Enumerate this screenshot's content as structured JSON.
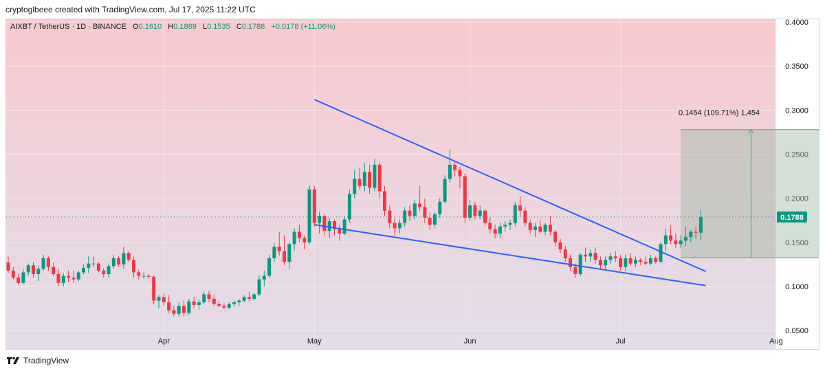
{
  "header": {
    "credit": "cryptoglbeee created with TradingView.com, Jul 17, 2025 11:22 UTC"
  },
  "legend": {
    "symbol": "AIXBT / TetherUS · 1D · BINANCE",
    "open_label": "O",
    "open": "0.1610",
    "high_label": "H",
    "high": "0.1869",
    "low_label": "L",
    "low": "0.1535",
    "close_label": "C",
    "close": "0.1788",
    "change": "+0.0178 (+11.06%)"
  },
  "brand": {
    "name": "TradingView",
    "logo_icon": "tradingview-logo-icon"
  },
  "chart_data": {
    "type": "candlestick",
    "title": "AIXBT / TetherUS · 1D · BINANCE",
    "ylim": [
      0.04,
      0.4
    ],
    "y_ticks": [
      "0.0500",
      "0.1000",
      "0.1500",
      "0.2000",
      "0.2500",
      "0.3000",
      "0.3500",
      "0.4000"
    ],
    "x_ticks": [
      {
        "label": "Apr",
        "day": 31
      },
      {
        "label": "May",
        "day": 61
      },
      {
        "label": "Jun",
        "day": 92
      },
      {
        "label": "Jul",
        "day": 122
      },
      {
        "label": "Aug",
        "day": 153
      }
    ],
    "last_price": "0.1788",
    "colors": {
      "up": "#089981",
      "down": "#f23645",
      "trend": "#2962ff",
      "measure": "#4caf50"
    },
    "candles": [
      [
        0.127,
        0.134,
        0.115,
        0.118
      ],
      [
        0.118,
        0.122,
        0.108,
        0.11
      ],
      [
        0.11,
        0.115,
        0.102,
        0.104
      ],
      [
        0.104,
        0.12,
        0.103,
        0.116
      ],
      [
        0.116,
        0.126,
        0.112,
        0.124
      ],
      [
        0.124,
        0.128,
        0.11,
        0.114
      ],
      [
        0.114,
        0.124,
        0.106,
        0.12
      ],
      [
        0.12,
        0.136,
        0.118,
        0.132
      ],
      [
        0.132,
        0.134,
        0.118,
        0.122
      ],
      [
        0.122,
        0.127,
        0.112,
        0.114
      ],
      [
        0.114,
        0.12,
        0.1,
        0.104
      ],
      [
        0.104,
        0.115,
        0.1,
        0.112
      ],
      [
        0.112,
        0.118,
        0.105,
        0.11
      ],
      [
        0.11,
        0.118,
        0.104,
        0.108
      ],
      [
        0.108,
        0.118,
        0.106,
        0.116
      ],
      [
        0.116,
        0.125,
        0.114,
        0.121
      ],
      [
        0.121,
        0.134,
        0.115,
        0.126
      ],
      [
        0.126,
        0.134,
        0.122,
        0.126
      ],
      [
        0.126,
        0.128,
        0.116,
        0.118
      ],
      [
        0.118,
        0.121,
        0.11,
        0.114
      ],
      [
        0.114,
        0.126,
        0.11,
        0.123
      ],
      [
        0.123,
        0.136,
        0.12,
        0.132
      ],
      [
        0.132,
        0.134,
        0.122,
        0.125
      ],
      [
        0.125,
        0.145,
        0.12,
        0.138
      ],
      [
        0.138,
        0.14,
        0.128,
        0.13
      ],
      [
        0.13,
        0.134,
        0.11,
        0.116
      ],
      [
        0.116,
        0.119,
        0.108,
        0.112
      ],
      [
        0.112,
        0.116,
        0.109,
        0.112
      ],
      [
        0.112,
        0.114,
        0.109,
        0.111
      ],
      [
        0.111,
        0.113,
        0.08,
        0.084
      ],
      [
        0.084,
        0.09,
        0.075,
        0.088
      ],
      [
        0.088,
        0.092,
        0.078,
        0.082
      ],
      [
        0.082,
        0.09,
        0.07,
        0.073
      ],
      [
        0.073,
        0.078,
        0.066,
        0.069
      ],
      [
        0.069,
        0.082,
        0.066,
        0.078
      ],
      [
        0.078,
        0.084,
        0.066,
        0.07
      ],
      [
        0.07,
        0.086,
        0.068,
        0.083
      ],
      [
        0.083,
        0.088,
        0.075,
        0.079
      ],
      [
        0.079,
        0.085,
        0.074,
        0.082
      ],
      [
        0.082,
        0.094,
        0.08,
        0.091
      ],
      [
        0.091,
        0.095,
        0.082,
        0.086
      ],
      [
        0.086,
        0.09,
        0.078,
        0.08
      ],
      [
        0.08,
        0.084,
        0.076,
        0.078
      ],
      [
        0.078,
        0.081,
        0.074,
        0.076
      ],
      [
        0.076,
        0.082,
        0.074,
        0.08
      ],
      [
        0.08,
        0.084,
        0.077,
        0.082
      ],
      [
        0.082,
        0.086,
        0.078,
        0.084
      ],
      [
        0.084,
        0.09,
        0.082,
        0.088
      ],
      [
        0.088,
        0.094,
        0.083,
        0.086
      ],
      [
        0.086,
        0.093,
        0.084,
        0.091
      ],
      [
        0.091,
        0.112,
        0.089,
        0.108
      ],
      [
        0.108,
        0.118,
        0.1,
        0.112
      ],
      [
        0.112,
        0.136,
        0.11,
        0.132
      ],
      [
        0.132,
        0.15,
        0.128,
        0.145
      ],
      [
        0.145,
        0.162,
        0.135,
        0.14
      ],
      [
        0.14,
        0.158,
        0.124,
        0.128
      ],
      [
        0.128,
        0.15,
        0.12,
        0.148
      ],
      [
        0.148,
        0.166,
        0.14,
        0.162
      ],
      [
        0.162,
        0.17,
        0.15,
        0.155
      ],
      [
        0.155,
        0.158,
        0.142,
        0.15
      ],
      [
        0.15,
        0.215,
        0.148,
        0.21
      ],
      [
        0.21,
        0.214,
        0.168,
        0.172
      ],
      [
        0.172,
        0.185,
        0.16,
        0.18
      ],
      [
        0.18,
        0.182,
        0.158,
        0.163
      ],
      [
        0.163,
        0.178,
        0.155,
        0.174
      ],
      [
        0.174,
        0.176,
        0.158,
        0.165
      ],
      [
        0.165,
        0.17,
        0.152,
        0.16
      ],
      [
        0.16,
        0.18,
        0.158,
        0.176
      ],
      [
        0.176,
        0.21,
        0.172,
        0.205
      ],
      [
        0.205,
        0.232,
        0.2,
        0.222
      ],
      [
        0.222,
        0.235,
        0.21,
        0.214
      ],
      [
        0.214,
        0.24,
        0.208,
        0.23
      ],
      [
        0.23,
        0.238,
        0.205,
        0.212
      ],
      [
        0.212,
        0.245,
        0.208,
        0.238
      ],
      [
        0.238,
        0.24,
        0.2,
        0.208
      ],
      [
        0.208,
        0.214,
        0.18,
        0.186
      ],
      [
        0.186,
        0.192,
        0.166,
        0.172
      ],
      [
        0.172,
        0.178,
        0.158,
        0.166
      ],
      [
        0.166,
        0.176,
        0.16,
        0.172
      ],
      [
        0.172,
        0.19,
        0.168,
        0.186
      ],
      [
        0.186,
        0.192,
        0.174,
        0.18
      ],
      [
        0.18,
        0.198,
        0.176,
        0.194
      ],
      [
        0.194,
        0.214,
        0.186,
        0.19
      ],
      [
        0.19,
        0.2,
        0.172,
        0.178
      ],
      [
        0.178,
        0.184,
        0.164,
        0.17
      ],
      [
        0.17,
        0.184,
        0.166,
        0.182
      ],
      [
        0.182,
        0.2,
        0.178,
        0.196
      ],
      [
        0.196,
        0.226,
        0.194,
        0.222
      ],
      [
        0.222,
        0.256,
        0.218,
        0.238
      ],
      [
        0.238,
        0.242,
        0.225,
        0.232
      ],
      [
        0.232,
        0.236,
        0.212,
        0.225
      ],
      [
        0.225,
        0.228,
        0.172,
        0.178
      ],
      [
        0.178,
        0.198,
        0.174,
        0.192
      ],
      [
        0.192,
        0.196,
        0.176,
        0.18
      ],
      [
        0.18,
        0.192,
        0.176,
        0.186
      ],
      [
        0.186,
        0.188,
        0.168,
        0.172
      ],
      [
        0.172,
        0.178,
        0.16,
        0.165
      ],
      [
        0.165,
        0.17,
        0.155,
        0.16
      ],
      [
        0.16,
        0.172,
        0.155,
        0.168
      ],
      [
        0.168,
        0.174,
        0.162,
        0.17
      ],
      [
        0.17,
        0.176,
        0.164,
        0.172
      ],
      [
        0.172,
        0.196,
        0.168,
        0.192
      ],
      [
        0.192,
        0.202,
        0.18,
        0.186
      ],
      [
        0.186,
        0.19,
        0.168,
        0.172
      ],
      [
        0.172,
        0.176,
        0.16,
        0.164
      ],
      [
        0.164,
        0.172,
        0.156,
        0.168
      ],
      [
        0.168,
        0.176,
        0.16,
        0.162
      ],
      [
        0.162,
        0.172,
        0.158,
        0.17
      ],
      [
        0.17,
        0.18,
        0.158,
        0.162
      ],
      [
        0.162,
        0.164,
        0.145,
        0.15
      ],
      [
        0.15,
        0.154,
        0.138,
        0.142
      ],
      [
        0.142,
        0.146,
        0.128,
        0.132
      ],
      [
        0.132,
        0.136,
        0.118,
        0.122
      ],
      [
        0.122,
        0.126,
        0.11,
        0.114
      ],
      [
        0.114,
        0.138,
        0.112,
        0.136
      ],
      [
        0.136,
        0.144,
        0.128,
        0.134
      ],
      [
        0.134,
        0.142,
        0.128,
        0.138
      ],
      [
        0.138,
        0.144,
        0.126,
        0.13
      ],
      [
        0.13,
        0.134,
        0.12,
        0.124
      ],
      [
        0.124,
        0.134,
        0.12,
        0.13
      ],
      [
        0.13,
        0.138,
        0.126,
        0.134
      ],
      [
        0.134,
        0.14,
        0.128,
        0.132
      ],
      [
        0.132,
        0.136,
        0.118,
        0.122
      ],
      [
        0.122,
        0.136,
        0.118,
        0.132
      ],
      [
        0.132,
        0.138,
        0.124,
        0.126
      ],
      [
        0.126,
        0.134,
        0.122,
        0.13
      ],
      [
        0.13,
        0.132,
        0.124,
        0.128
      ],
      [
        0.128,
        0.134,
        0.124,
        0.126
      ],
      [
        0.126,
        0.136,
        0.124,
        0.132
      ],
      [
        0.132,
        0.134,
        0.126,
        0.128
      ],
      [
        0.128,
        0.15,
        0.127,
        0.148
      ],
      [
        0.148,
        0.166,
        0.14,
        0.158
      ],
      [
        0.158,
        0.17,
        0.148,
        0.152
      ],
      [
        0.152,
        0.16,
        0.144,
        0.148
      ],
      [
        0.148,
        0.158,
        0.144,
        0.152
      ],
      [
        0.152,
        0.168,
        0.146,
        0.156
      ],
      [
        0.156,
        0.164,
        0.15,
        0.162
      ],
      [
        0.162,
        0.168,
        0.154,
        0.161
      ],
      [
        0.161,
        0.187,
        0.153,
        0.1788
      ]
    ],
    "candle_start_day": 0,
    "trendlines": [
      {
        "from": {
          "day": 61,
          "price": 0.312
        },
        "to": {
          "day": 139,
          "price": 0.117
        }
      },
      {
        "from": {
          "day": 61,
          "price": 0.17
        },
        "to": {
          "day": 139,
          "price": 0.101
        }
      }
    ],
    "measure": {
      "label": "0.1454 (109.71%) 1,454",
      "from_day": 134,
      "to_day": 163,
      "low": 0.1325,
      "high": 0.2779,
      "arrow_day": 148
    }
  }
}
